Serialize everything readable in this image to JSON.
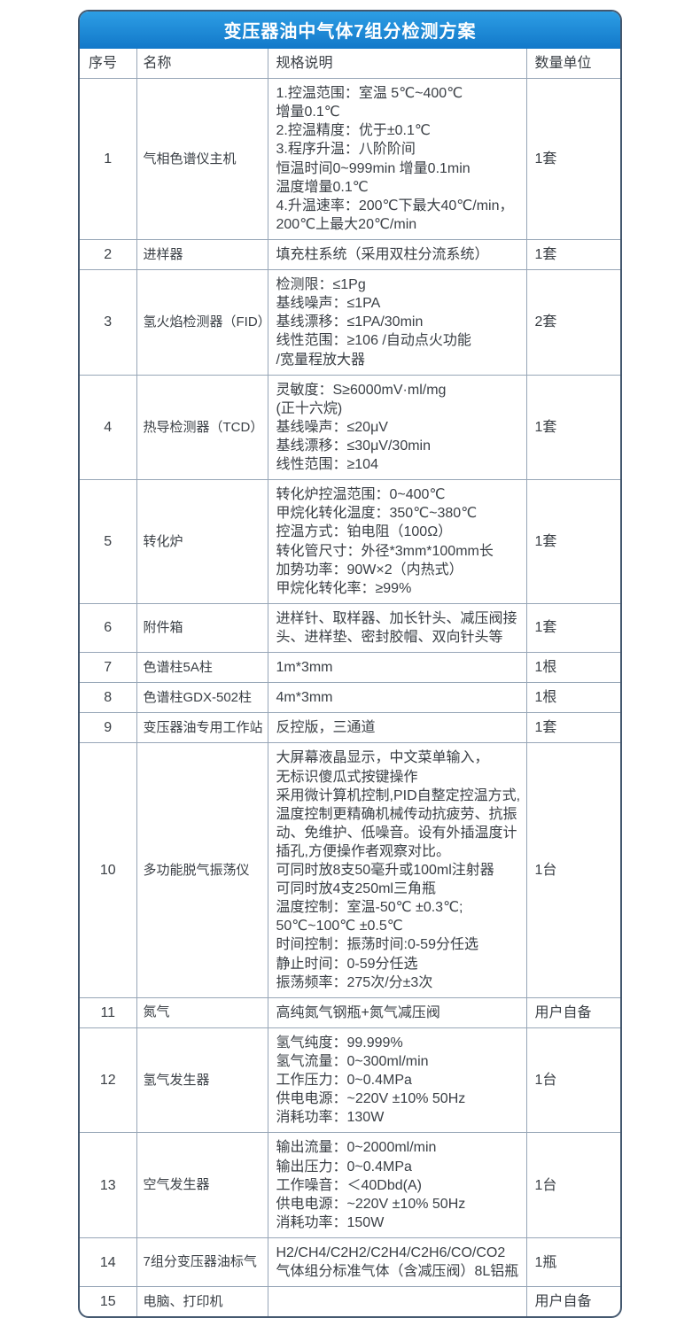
{
  "title": "变压器油中气体7组分检测方案",
  "colors": {
    "header_bg_top": "#2d9ee5",
    "header_bg_bottom": "#1278c9",
    "border_outer": "#44586f",
    "border_inner": "#97a6b7",
    "text": "#3a3f45",
    "title_text": "#ffffff"
  },
  "table": {
    "headers": [
      "序号",
      "名称",
      "规格说明",
      "数量单位"
    ],
    "rows": [
      {
        "no": "1",
        "name": "气相色谱仪主机",
        "spec": [
          "1.控温范围：室温 5℃~400℃",
          "增量0.1℃",
          "2.控温精度：优于±0.1℃",
          "3.程序升温：八阶阶间",
          "恒温时间0~999min 增量0.1min",
          "温度增量0.1℃",
          "4.升温速率：200℃下最大40℃/min，",
          "200℃上最大20℃/min"
        ],
        "qty": "1套"
      },
      {
        "no": "2",
        "name": "进样器",
        "spec": [
          "填充柱系统（采用双柱分流系统）"
        ],
        "qty": "1套"
      },
      {
        "no": "3",
        "name": "氢火焰检测器（FID）",
        "spec": [
          "检测限：≤1Pg",
          "基线噪声：≤1PA",
          "基线漂移：≤1PA/30min",
          "线性范围：≥106 /自动点火功能",
          "/宽量程放大器"
        ],
        "qty": "2套"
      },
      {
        "no": "4",
        "name": "热导检测器（TCD）",
        "spec": [
          "灵敏度：S≥6000mV·ml/mg",
          "(正十六烷)",
          "基线噪声：≤20μV",
          "基线漂移：≤30μV/30min",
          "线性范围：≥104"
        ],
        "qty": "1套"
      },
      {
        "no": "5",
        "name": "转化炉",
        "spec": [
          "转化炉控温范围：0~400℃",
          "甲烷化转化温度：350℃~380℃",
          "控温方式：铂电阻（100Ω）",
          "转化管尺寸：外径*3mm*100mm长",
          "加势功率：90W×2（内热式）",
          "甲烷化转化率：≥99%"
        ],
        "qty": "1套"
      },
      {
        "no": "6",
        "name": "附件箱",
        "spec": [
          "进样针、取样器、加长针头、减压阀接头、进样垫、密封胶帽、双向针头等"
        ],
        "qty": "1套"
      },
      {
        "no": "7",
        "name": "色谱柱5A柱",
        "spec": [
          "1m*3mm"
        ],
        "qty": "1根"
      },
      {
        "no": "8",
        "name": "色谱柱GDX-502柱",
        "spec": [
          "4m*3mm"
        ],
        "qty": "1根"
      },
      {
        "no": "9",
        "name": "变压器油专用工作站",
        "spec": [
          "反控版，三通道"
        ],
        "qty": "1套"
      },
      {
        "no": "10",
        "name": "多功能脱气振荡仪",
        "spec": [
          "大屏幕液晶显示，中文菜单输入，",
          "无标识傻瓜式按键操作",
          "采用微计算机控制,PID自整定控温方式,温度控制更精确机械传动抗疲劳、抗振动、免维护、低噪音。设有外插温度计插孔,方便操作者观察对比。",
          "可同时放8支50毫升或100ml注射器",
          "可同时放4支250ml三角瓶",
          "温度控制：室温-50℃ ±0.3℃;",
          " 50℃~100℃ ±0.5℃",
          "时间控制：振荡时间:0-59分任选",
          "静止时间：0-59分任选",
          "振荡频率：275次/分±3次"
        ],
        "qty": "1台"
      },
      {
        "no": "11",
        "name": "氮气",
        "spec": [
          "高纯氮气钢瓶+氮气减压阀"
        ],
        "qty": "用户自备"
      },
      {
        "no": "12",
        "name": "氢气发生器",
        "spec": [
          "氢气纯度：99.999%",
          "氢气流量：0~300ml/min",
          "工作压力：0~0.4MPa",
          "供电电源：~220V ±10% 50Hz",
          "消耗功率：130W"
        ],
        "qty": "1台"
      },
      {
        "no": "13",
        "name": "空气发生器",
        "spec": [
          "输出流量：0~2000ml/min",
          "输出压力：0~0.4MPa",
          "工作噪音：＜40Dbd(A)",
          "供电电源：~220V ±10% 50Hz",
          "消耗功率：150W"
        ],
        "qty": "1台"
      },
      {
        "no": "14",
        "name": "7组分变压器油标气",
        "spec": [
          "H2/CH4/C2H2/C2H4/C2H6/CO/CO2",
          "气体组分标准气体（含减压阀）8L铝瓶"
        ],
        "qty": "1瓶"
      },
      {
        "no": "15",
        "name": "电脑、打印机",
        "spec": [],
        "qty": "用户自备"
      }
    ]
  }
}
